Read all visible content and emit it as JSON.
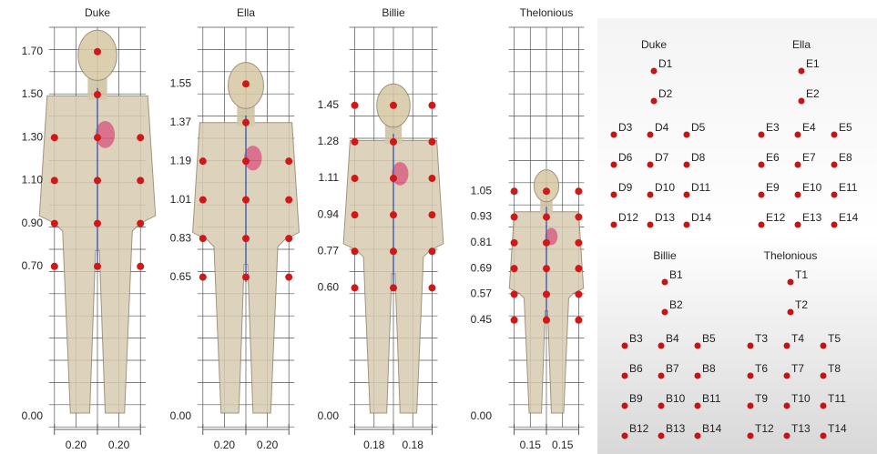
{
  "models": [
    {
      "name": "Duke",
      "heights": [
        "1.70",
        "1.50",
        "1.30",
        "1.10",
        "0.90",
        "0.70",
        "0.00"
      ],
      "widths": [
        "0.20",
        "0.20"
      ]
    },
    {
      "name": "Ella",
      "heights": [
        "1.55",
        "1.37",
        "1.19",
        "1.01",
        "0.83",
        "0.65",
        "0.00"
      ],
      "widths": [
        "0.20",
        "0.20"
      ]
    },
    {
      "name": "Billie",
      "heights": [
        "1.45",
        "1.28",
        "1.11",
        "0.94",
        "0.77",
        "0.60",
        "0.00"
      ],
      "widths": [
        "0.18",
        "0.18"
      ]
    },
    {
      "name": "Thelonious",
      "heights": [
        "1.05",
        "0.93",
        "0.81",
        "0.69",
        "0.57",
        "0.45",
        "0.00"
      ],
      "widths": [
        "0.15",
        "0.15"
      ]
    }
  ],
  "legend": [
    {
      "name": "Duke",
      "points": [
        "D1",
        "D2",
        "D3",
        "D4",
        "D5",
        "D6",
        "D7",
        "D8",
        "D9",
        "D10",
        "D11",
        "D12",
        "D13",
        "D14"
      ]
    },
    {
      "name": "Ella",
      "points": [
        "E1",
        "E2",
        "E3",
        "E4",
        "E5",
        "E6",
        "E7",
        "E8",
        "E9",
        "E10",
        "E11",
        "E12",
        "E13",
        "E14"
      ]
    },
    {
      "name": "Billie",
      "points": [
        "B1",
        "B2",
        "B3",
        "B4",
        "B5",
        "B6",
        "B7",
        "B8",
        "B9",
        "B10",
        "B11",
        "B12",
        "B13",
        "B14"
      ]
    },
    {
      "name": "Thelonious",
      "points": [
        "T1",
        "T2",
        "T3",
        "T4",
        "T5",
        "T6",
        "T7",
        "T8",
        "T9",
        "T10",
        "T11",
        "T12",
        "T13",
        "T14"
      ]
    }
  ]
}
